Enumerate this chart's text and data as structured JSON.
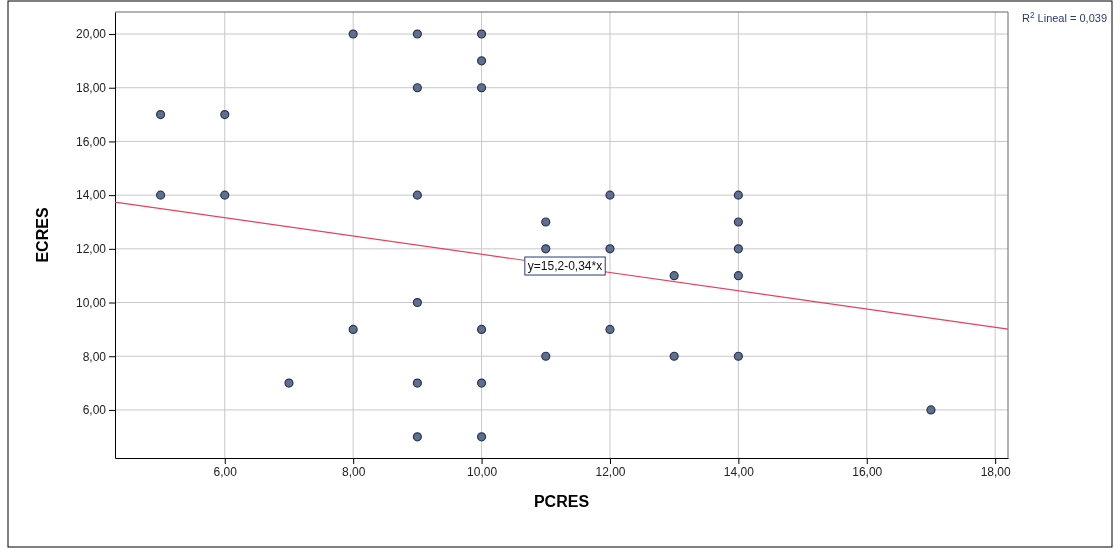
{
  "chart_data": {
    "type": "scatter",
    "xlabel": "PCRES",
    "ylabel": "ECRES",
    "xlim": [
      4.29,
      18.2
    ],
    "ylim": [
      4.21,
      20.82
    ],
    "xticks": [
      {
        "value": 6,
        "label": "6,00"
      },
      {
        "value": 8,
        "label": "8,00"
      },
      {
        "value": 10,
        "label": "10,00"
      },
      {
        "value": 12,
        "label": "12,00"
      },
      {
        "value": 14,
        "label": "14,00"
      },
      {
        "value": 16,
        "label": "16,00"
      },
      {
        "value": 18,
        "label": "18,00"
      }
    ],
    "yticks": [
      {
        "value": 6,
        "label": "6,00"
      },
      {
        "value": 8,
        "label": "8,00"
      },
      {
        "value": 10,
        "label": "10,00"
      },
      {
        "value": 12,
        "label": "12,00"
      },
      {
        "value": 14,
        "label": "14,00"
      },
      {
        "value": 16,
        "label": "16,00"
      },
      {
        "value": 18,
        "label": "18,00"
      },
      {
        "value": 20,
        "label": "20,00"
      }
    ],
    "grid": true,
    "series": [
      {
        "marker": "circle",
        "color": "#5f6f8f",
        "x": [
          5,
          5,
          6,
          6,
          7,
          8,
          8,
          9,
          9,
          9,
          9,
          9,
          9,
          10,
          10,
          10,
          10,
          10,
          10,
          11,
          11,
          11,
          12,
          12,
          12,
          13,
          13,
          14,
          14,
          14,
          14,
          14,
          17
        ],
        "values": [
          17,
          14,
          17,
          14,
          7,
          20,
          9,
          20,
          18,
          14,
          10,
          7,
          5,
          20,
          19,
          18,
          9,
          7,
          5,
          13,
          12,
          8,
          14,
          12,
          9,
          11,
          8,
          14,
          13,
          12,
          11,
          8,
          6
        ]
      },
      {
        "type": "line",
        "color": "#e8405a",
        "x": [
          4.29,
          18.2
        ],
        "values": [
          13.74,
          9.01
        ]
      }
    ],
    "annotations": [
      {
        "text": "y=15,2-0,34*x",
        "x": 11.3,
        "y": 11.36
      },
      "R$^{2}$ Lineal = 0,039"
    ]
  }
}
